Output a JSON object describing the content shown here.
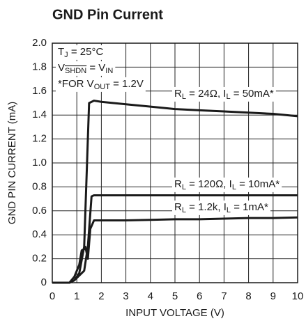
{
  "chart_data": {
    "type": "line",
    "title": "GND Pin Current",
    "xlabel": "INPUT VOLTAGE (V)",
    "ylabel": "GND PIN CURRENT (mA)",
    "xlim": [
      0,
      10
    ],
    "ylim": [
      0,
      2.0
    ],
    "xticks": [
      0,
      1,
      2,
      3,
      4,
      5,
      6,
      7,
      8,
      9,
      10
    ],
    "yticks": [
      0,
      0.2,
      0.4,
      0.6,
      0.8,
      {
        "value": 1.0,
        "label": "1.0"
      },
      1.2,
      1.4,
      1.6,
      1.8,
      {
        "value": 2.0,
        "label": "2.0"
      }
    ],
    "grid": true,
    "color": "#1a1a1a",
    "annotations": [
      [
        {
          "text": "T"
        },
        {
          "text": "J",
          "sub": true
        },
        {
          "text": " = 25°C"
        }
      ],
      [
        {
          "text": "V"
        },
        {
          "text": "SHDN",
          "sub": true,
          "overline": true
        },
        {
          "text": " = V"
        },
        {
          "text": "IN",
          "sub": true
        }
      ],
      [
        {
          "text": "*FOR V"
        },
        {
          "text": "OUT",
          "sub": true
        },
        {
          "text": " = 1.2V"
        }
      ]
    ],
    "series": [
      {
        "label": [
          {
            "text": "R"
          },
          {
            "text": "L",
            "sub": true
          },
          {
            "text": " = 24Ω, I"
          },
          {
            "text": "L",
            "sub": true
          },
          {
            "text": " = 50mA*"
          }
        ],
        "x": [
          0,
          0.7,
          0.9,
          1.1,
          1.3,
          1.4,
          1.5,
          1.7,
          2,
          3,
          4,
          5,
          6,
          7,
          8,
          9,
          10
        ],
        "values": [
          0,
          0,
          0.02,
          0.08,
          0.3,
          0.9,
          1.5,
          1.52,
          1.51,
          1.49,
          1.47,
          1.45,
          1.44,
          1.43,
          1.42,
          1.41,
          1.39
        ]
      },
      {
        "label": [
          {
            "text": "R"
          },
          {
            "text": "L",
            "sub": true
          },
          {
            "text": " = 120Ω, I"
          },
          {
            "text": "L",
            "sub": true
          },
          {
            "text": " = 10mA*"
          }
        ],
        "x": [
          0,
          0.7,
          0.9,
          1.1,
          1.3,
          1.45,
          1.6,
          1.7,
          2,
          3,
          4,
          5,
          6,
          7,
          8,
          9,
          10
        ],
        "values": [
          0,
          0,
          0.02,
          0.06,
          0.1,
          0.3,
          0.72,
          0.73,
          0.73,
          0.73,
          0.73,
          0.73,
          0.73,
          0.73,
          0.73,
          0.73,
          0.73
        ]
      },
      {
        "label": [
          {
            "text": "R"
          },
          {
            "text": "L",
            "sub": true
          },
          {
            "text": " = 1.2k, I"
          },
          {
            "text": "L",
            "sub": true
          },
          {
            "text": " = 1mA*"
          }
        ],
        "x": [
          0,
          0.7,
          0.9,
          1.1,
          1.2,
          1.3,
          1.35,
          1.45,
          1.55,
          1.7,
          2,
          3,
          4,
          5,
          6,
          7,
          8,
          9,
          10
        ],
        "values": [
          0,
          0,
          0.05,
          0.15,
          0.27,
          0.28,
          0.3,
          0.2,
          0.45,
          0.52,
          0.52,
          0.52,
          0.525,
          0.53,
          0.53,
          0.535,
          0.54,
          0.54,
          0.545
        ]
      }
    ]
  }
}
